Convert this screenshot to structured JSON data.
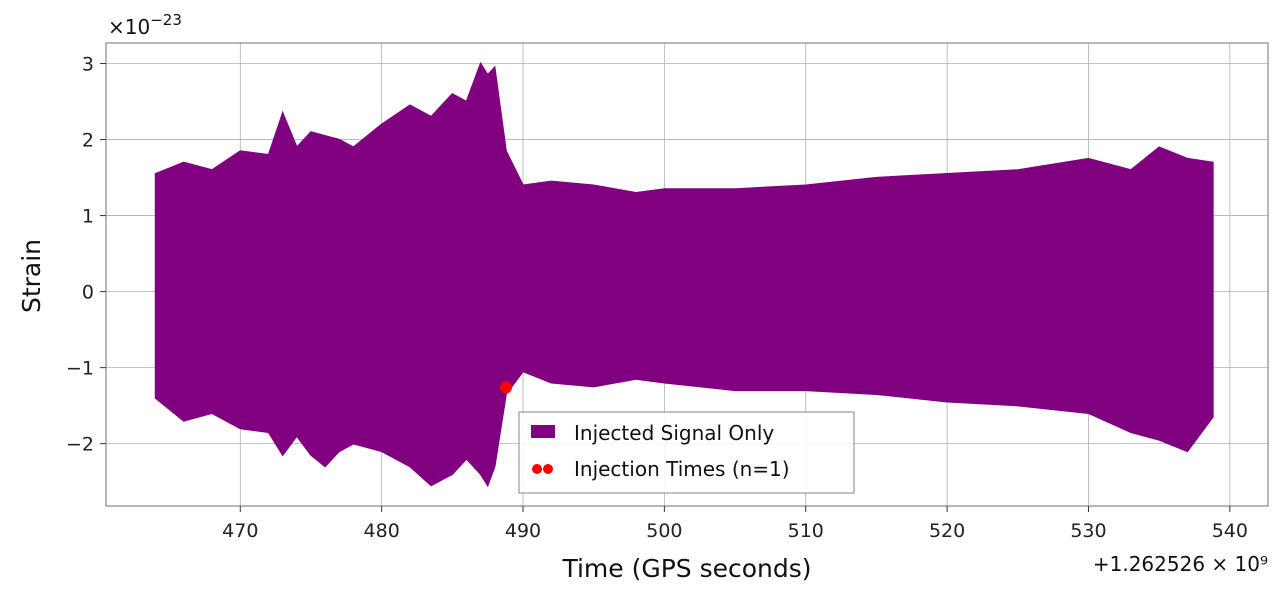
{
  "chart_data": {
    "type": "line",
    "xlabel": "Time (GPS seconds)",
    "ylabel": "Strain",
    "x_offset_label": "+1.262526 × 10⁹",
    "y_scale_label_base": "×10",
    "y_scale_label_exp": "−23",
    "xlim": [
      460.5,
      542.7
    ],
    "ylim": [
      -2.82,
      3.27
    ],
    "x_ticks": [
      470,
      480,
      490,
      500,
      510,
      520,
      530,
      540
    ],
    "x_tick_labels": [
      "470",
      "480",
      "490",
      "500",
      "510",
      "520",
      "530",
      "540"
    ],
    "y_ticks": [
      -2,
      -1,
      0,
      1,
      2,
      3
    ],
    "y_tick_labels": [
      "−2",
      "−1",
      "0",
      "1",
      "2",
      "3"
    ],
    "grid": true,
    "legend_position": "lower-center",
    "series": [
      {
        "name": "Injected Signal Only",
        "kind": "band",
        "color": "#800080",
        "x": [
          464.0,
          466.0,
          468.0,
          470.0,
          472.0,
          473.0,
          474.0,
          475.0,
          476.0,
          477.0,
          478.0,
          480.0,
          482.0,
          483.5,
          485.0,
          486.0,
          487.0,
          487.5,
          488.0,
          488.8,
          490.0,
          492.0,
          495.0,
          498.0,
          500.0,
          505.0,
          510.0,
          515.0,
          520.0,
          525.0,
          530.0,
          533.0,
          535.0,
          537.0,
          538.8
        ],
        "upper": [
          1.55,
          1.7,
          1.6,
          1.85,
          1.8,
          2.35,
          1.9,
          2.1,
          2.05,
          2.0,
          1.9,
          2.2,
          2.45,
          2.3,
          2.6,
          2.5,
          3.0,
          2.85,
          2.95,
          1.85,
          1.4,
          1.45,
          1.4,
          1.3,
          1.35,
          1.35,
          1.4,
          1.5,
          1.55,
          1.6,
          1.75,
          1.6,
          1.9,
          1.75,
          1.7
        ],
        "lower": [
          -1.4,
          -1.7,
          -1.6,
          -1.8,
          -1.85,
          -2.15,
          -1.9,
          -2.15,
          -2.3,
          -2.1,
          -2.0,
          -2.1,
          -2.3,
          -2.55,
          -2.4,
          -2.2,
          -2.4,
          -2.55,
          -2.3,
          -1.35,
          -1.05,
          -1.2,
          -1.25,
          -1.15,
          -1.2,
          -1.3,
          -1.3,
          -1.35,
          -1.45,
          -1.5,
          -1.6,
          -1.85,
          -1.95,
          -2.1,
          -1.65
        ]
      },
      {
        "name": "Injection Times (n=1)",
        "kind": "scatter",
        "color": "#ff0000",
        "points": [
          {
            "x": 488.8,
            "y": -1.26
          }
        ]
      }
    ]
  }
}
